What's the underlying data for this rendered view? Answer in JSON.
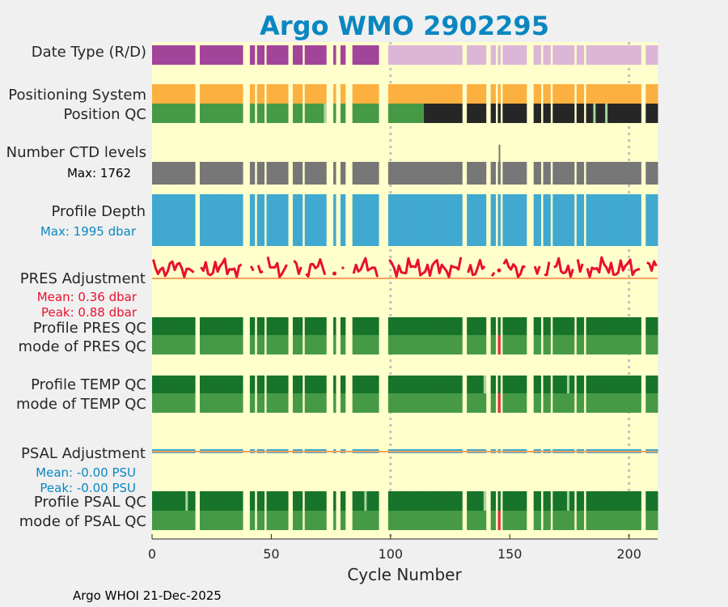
{
  "chart_data": {
    "type": "heatmap",
    "title": "Argo WMO 2902295",
    "xlabel": "Cycle Number",
    "xlim": [
      0,
      212
    ],
    "xticks": [
      0,
      50,
      100,
      150,
      200
    ],
    "footer": "Argo WHOI 21-Dec-2025",
    "row_labels": {
      "date_type": "Date Type (R/D)",
      "positioning": "Positioning System",
      "position_qc": "Position QC",
      "ctd_levels": "Number CTD levels",
      "profile_depth": "Profile Depth",
      "pres_adj": "PRES Adjustment",
      "pres_qc": "Profile PRES QC",
      "pres_mode": "mode of PRES QC",
      "temp_qc": "Profile TEMP QC",
      "temp_mode": "mode of TEMP QC",
      "psal_adj": "PSAL Adjustment",
      "psal_qc": "Profile PSAL QC",
      "psal_mode": "mode of PSAL QC"
    },
    "annotations": {
      "ctd_max": "Max: 1762",
      "depth_max": "Max: 1995 dbar",
      "pres_mean": "Mean: 0.36 dbar",
      "pres_peak": "Peak: 0.88 dbar",
      "psal_mean": "Mean: -0.00 PSU",
      "psal_peak": "Peak: -0.00 PSU"
    },
    "cycle_range": [
      1,
      212
    ],
    "missing_cycles": [
      19,
      20,
      39,
      40,
      41,
      44,
      48,
      58,
      59,
      64,
      74,
      75,
      76,
      78,
      79,
      82,
      83,
      84,
      96,
      97,
      98,
      99,
      131,
      132,
      141,
      142,
      145,
      147,
      158,
      159,
      160,
      164,
      168,
      178,
      182,
      206,
      207
    ],
    "delayed_mode_last_cycle": 99,
    "position_qc_dark_from": 115,
    "position_qc_light_cycles": [
      73,
      74,
      186,
      191
    ],
    "ctd_levels_peak": {
      "cycle": 146,
      "value": 1762,
      "typical": 1000
    },
    "profile_depth_max_dbar": 1995,
    "profile_depth_typical_dbar": 1990,
    "pres_adjustment_mean": 0.36,
    "pres_adjustment_peak": 0.88,
    "pres_adjustment_range": [
      -0.05,
      0.9
    ],
    "qc_bad_cycle": 146,
    "temp_qc_light_cycles": [
      140,
      164,
      175
    ],
    "psal_qc_light_cycles": [
      15,
      78,
      90,
      140,
      164,
      175
    ],
    "colors": {
      "background": "#ffffcc",
      "real_time": "#a2449a",
      "delayed": "#dcb6d6",
      "positioning": "#fcb040",
      "qc_good": "#469a46",
      "qc_good_dark": "#17742a",
      "qc_dark": "#262626",
      "ctd": "#777777",
      "depth": "#41a9d0",
      "pres_adj": "#e8102e",
      "psal_adj": "#41a9d0",
      "bad": "#d43b3b",
      "title": "#0a87c1",
      "zero_line": "#f4a05a"
    }
  }
}
